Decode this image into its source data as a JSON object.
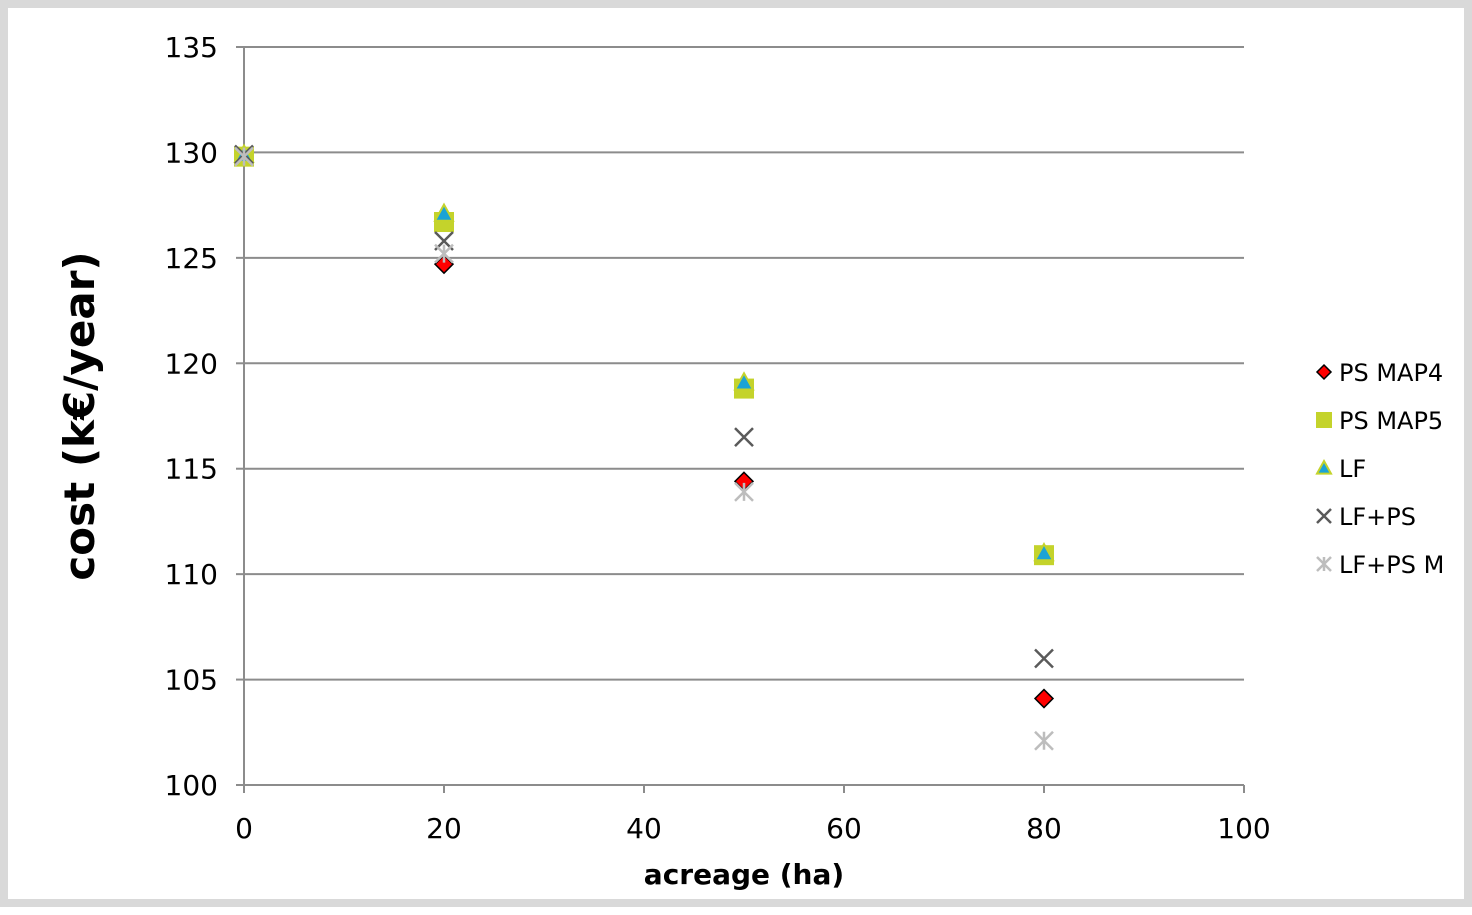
{
  "chart_data": {
    "type": "scatter",
    "xlabel": "acreage (ha)",
    "ylabel": "cost (k€/year)",
    "xlim": [
      0,
      100
    ],
    "ylim": [
      100,
      135
    ],
    "x_ticks": [
      0,
      20,
      40,
      60,
      80,
      100
    ],
    "y_ticks": [
      100,
      105,
      110,
      115,
      120,
      125,
      130,
      135
    ],
    "grid": "horizontal",
    "legend_position": "right",
    "series": [
      {
        "name": "PS MAP4",
        "marker": "diamond",
        "color": "#ff0000",
        "stroke": "#000000",
        "x": [
          0,
          20,
          50,
          80
        ],
        "y": [
          129.8,
          124.7,
          114.4,
          104.1
        ]
      },
      {
        "name": "PS MAP5",
        "marker": "square",
        "color": "#c4d32b",
        "stroke": "#c4d32b",
        "x": [
          0,
          20,
          50,
          80
        ],
        "y": [
          129.8,
          126.7,
          118.8,
          110.9
        ]
      },
      {
        "name": "LF",
        "marker": "triangle",
        "color": "#1ba3d6",
        "stroke": "#c4d32b",
        "x": [
          0,
          20,
          50,
          80
        ],
        "y": [
          129.9,
          127.1,
          119.1,
          111.0
        ]
      },
      {
        "name": "LF+PS",
        "marker": "x",
        "color": "#5a5a5a",
        "stroke": "#5a5a5a",
        "x": [
          0,
          20,
          50,
          80
        ],
        "y": [
          129.9,
          125.8,
          116.5,
          106.0
        ]
      },
      {
        "name": "LF+PS M",
        "marker": "asterisk",
        "color": "#bdbdbd",
        "stroke": "#bdbdbd",
        "x": [
          0,
          20,
          50,
          80
        ],
        "y": [
          129.8,
          125.2,
          113.9,
          102.1
        ]
      }
    ]
  }
}
